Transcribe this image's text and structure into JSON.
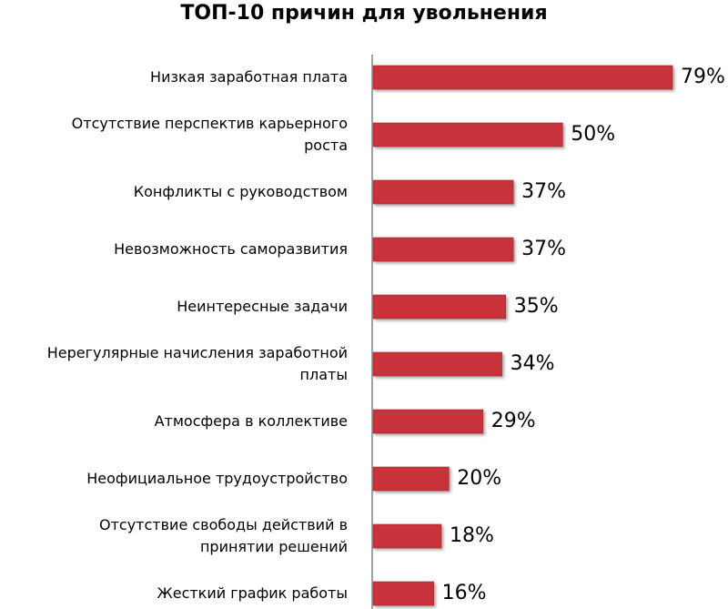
{
  "chart_data": {
    "type": "bar",
    "orientation": "horizontal",
    "title": "ТОП-10 причин для увольнения",
    "xlabel": "",
    "ylabel": "",
    "categories": [
      "Низкая заработная плата",
      "Отсутствие перспектив карьерного роста",
      "Конфликты с руководством",
      "Невозможность саморазвития",
      "Неинтересные задачи",
      "Нерегулярные начисления заработной платы",
      "Атмосфера в коллективе",
      "Неофициальное трудоустройство",
      "Отсутствие свободы действий в принятии решений",
      "Жесткий график работы"
    ],
    "category_lines": [
      [
        "Низкая заработная плата"
      ],
      [
        "Отсутствие перспектив карьерного",
        "роста"
      ],
      [
        "Конфликты с руководством"
      ],
      [
        "Невозможность саморазвития"
      ],
      [
        "Неинтересные задачи"
      ],
      [
        "Нерегулярные начисления заработной",
        "платы"
      ],
      [
        "Атмосфера в коллективе"
      ],
      [
        "Неофициальное трудоустройство"
      ],
      [
        "Отсутствие свободы действий в",
        "принятии решений"
      ],
      [
        "Жесткий график работы"
      ]
    ],
    "values": [
      79,
      50,
      37,
      37,
      35,
      34,
      29,
      20,
      18,
      16
    ],
    "data_labels": [
      "79%",
      "50%",
      "37%",
      "37%",
      "35%",
      "34%",
      "29%",
      "20%",
      "18%",
      "16%"
    ],
    "xlim": [
      0,
      80
    ],
    "grid": false,
    "legend": "none",
    "colors": {
      "bar": "#c8323a",
      "bar_edge": "#a12830",
      "axis": "#808080"
    }
  }
}
